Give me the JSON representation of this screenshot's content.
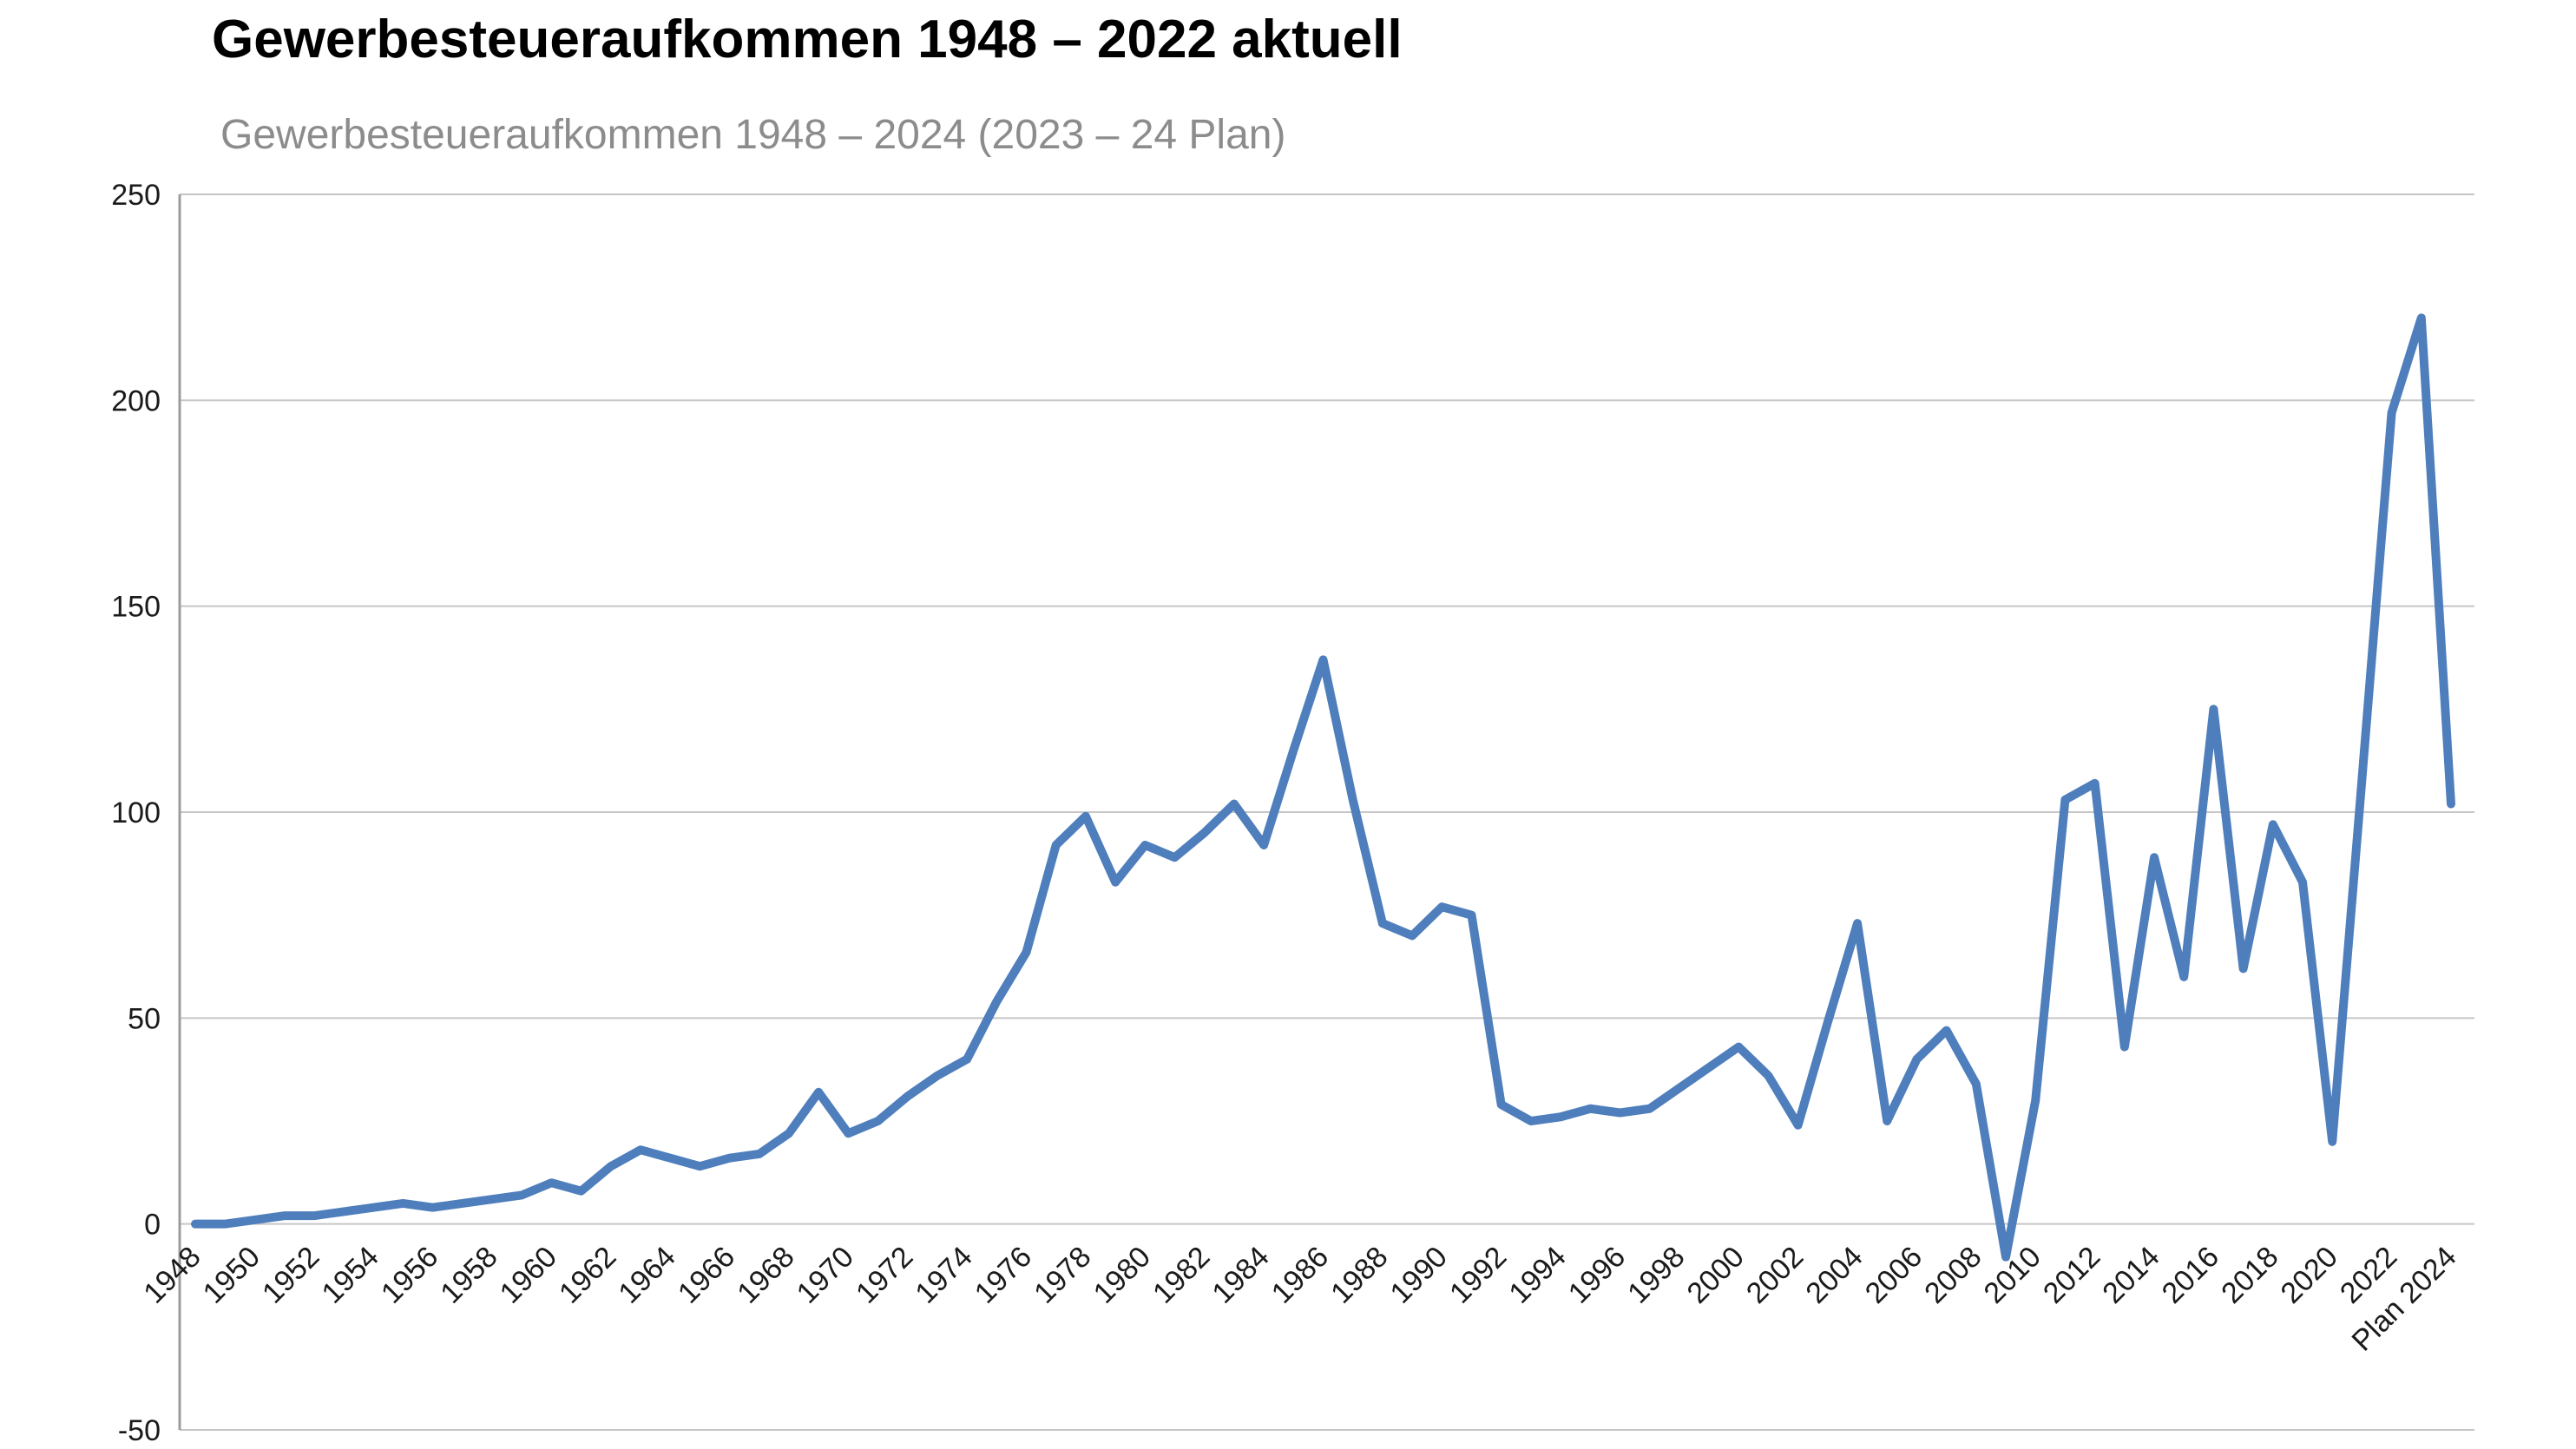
{
  "header": {
    "title": "Gewerbesteueraufkommen 1948 – 2022 aktuell",
    "subtitle": "Gewerbesteueraufkommen 1948 – 2024 (2023 – 24 Plan)"
  },
  "chart_data": {
    "type": "line",
    "title": "Gewerbesteueraufkommen 1948 – 2022 aktuell",
    "subtitle": "Gewerbesteueraufkommen 1948 – 2024 (2023 – 24 Plan)",
    "xlabel": "",
    "ylabel": "",
    "ylim": [
      -50,
      250
    ],
    "yticks": [
      250,
      200,
      150,
      100,
      50,
      0,
      -50
    ],
    "grid": true,
    "legend_position": "none",
    "categories": [
      "1948",
      "1949",
      "1950",
      "1951",
      "1952",
      "1953",
      "1954",
      "1955",
      "1956",
      "1957",
      "1958",
      "1959",
      "1960",
      "1961",
      "1962",
      "1963",
      "1964",
      "1965",
      "1966",
      "1967",
      "1968",
      "1969",
      "1970",
      "1971",
      "1972",
      "1973",
      "1974",
      "1975",
      "1976",
      "1977",
      "1978",
      "1979",
      "1980",
      "1981",
      "1982",
      "1983",
      "1984",
      "1985",
      "1986",
      "1987",
      "1988",
      "1989",
      "1990",
      "1991",
      "1992",
      "1993",
      "1994",
      "1995",
      "1996",
      "1997",
      "1998",
      "1999",
      "2000",
      "2001",
      "2002",
      "2003",
      "2004",
      "2005",
      "2006",
      "2007",
      "2008",
      "2009",
      "2010",
      "2011",
      "2012",
      "2013",
      "2014",
      "2015",
      "2016",
      "2017",
      "2018",
      "2019",
      "2020",
      "2021",
      "2022",
      "2023",
      "Plan 2024"
    ],
    "values": [
      0,
      0,
      1,
      2,
      2,
      3,
      4,
      5,
      4,
      5,
      6,
      7,
      10,
      8,
      14,
      18,
      16,
      14,
      16,
      17,
      22,
      32,
      22,
      25,
      31,
      36,
      40,
      54,
      66,
      92,
      99,
      83,
      92,
      89,
      95,
      102,
      92,
      115,
      137,
      103,
      73,
      70,
      77,
      75,
      29,
      25,
      26,
      28,
      27,
      28,
      33,
      38,
      43,
      36,
      24,
      49,
      73,
      25,
      40,
      47,
      34,
      -8,
      30,
      103,
      107,
      43,
      89,
      60,
      125,
      62,
      97,
      83,
      20,
      108,
      197,
      220,
      102
    ],
    "x_tick_labels": [
      "1948",
      "1950",
      "1952",
      "1954",
      "1956",
      "1958",
      "1960",
      "1962",
      "1964",
      "1966",
      "1968",
      "1970",
      "1972",
      "1974",
      "1976",
      "1978",
      "1980",
      "1982",
      "1984",
      "1986",
      "1988",
      "1990",
      "1992",
      "1994",
      "1996",
      "1998",
      "2000",
      "2002",
      "2004",
      "2006",
      "2008",
      "2010",
      "2012",
      "2014",
      "2016",
      "2018",
      "2020",
      "2022",
      "Plan 2024"
    ],
    "series_name": "Gewerbesteueraufkommen",
    "line_color": "#4e7ebc",
    "gridline_color": "#c6c6c6",
    "axis_color": "#9c9c9c",
    "tick_label_color": "#1a1a1a"
  }
}
